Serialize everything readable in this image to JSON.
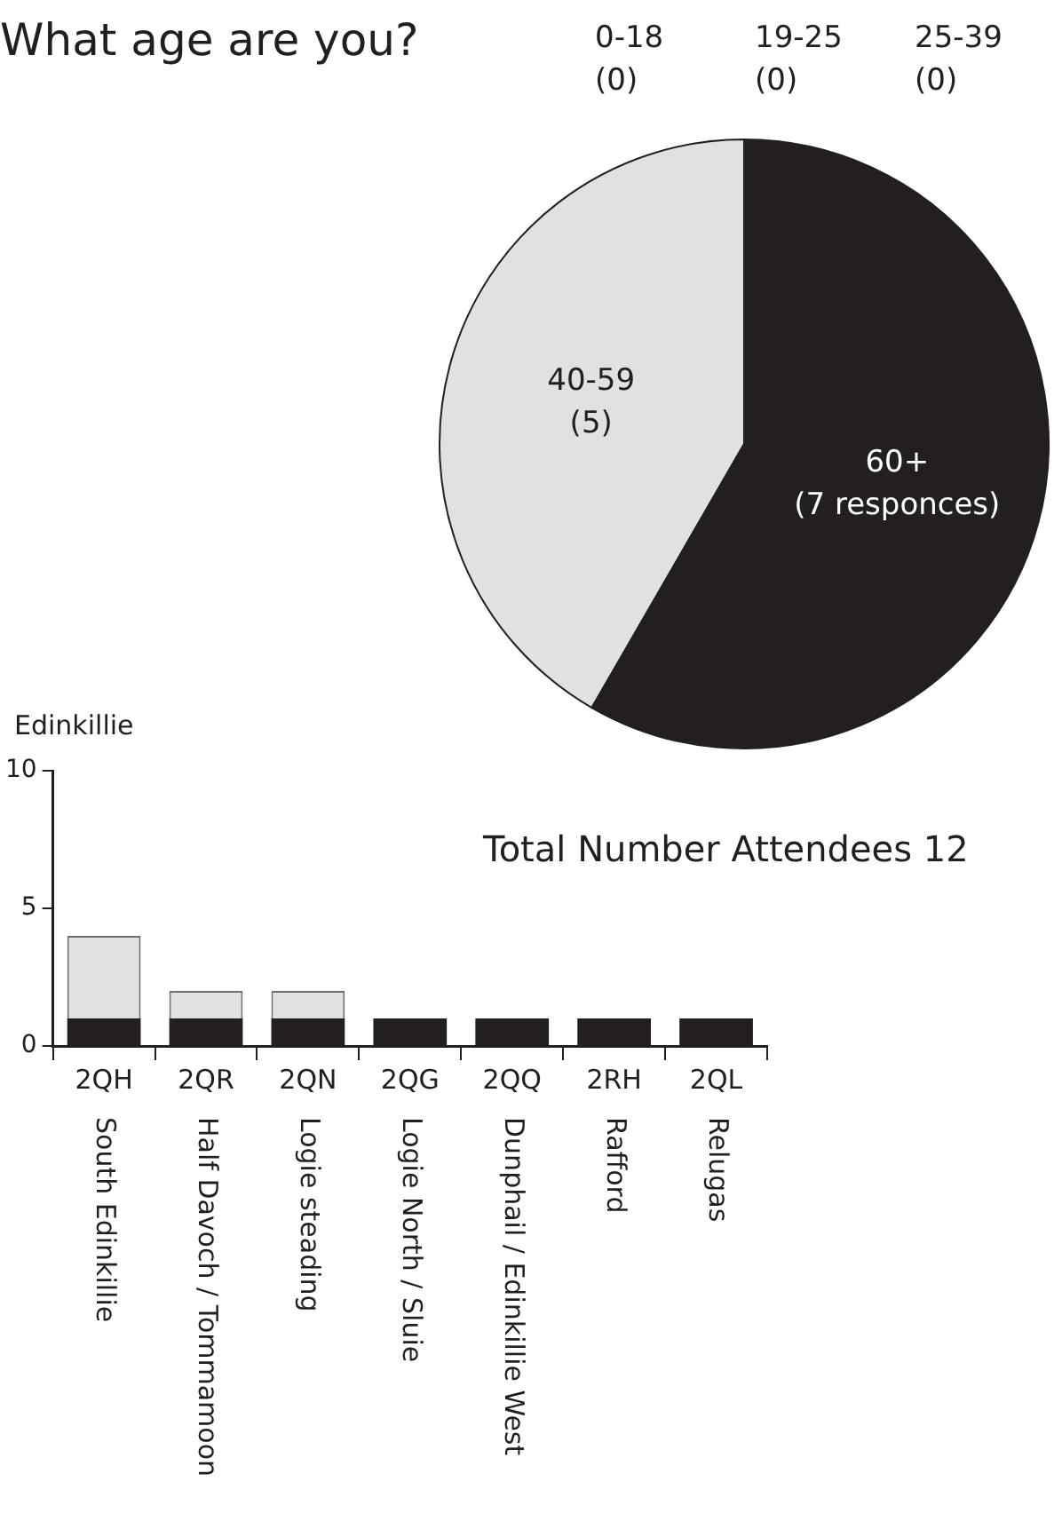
{
  "chart_data": [
    {
      "type": "pie",
      "title": "What age are you?",
      "categories": [
        "0-18",
        "19-25",
        "25-39",
        "40-59",
        "60+"
      ],
      "values": [
        0,
        0,
        0,
        5,
        7
      ],
      "colors": [
        "#e0e1e3",
        "#e0e1e3",
        "#e0e1e3",
        "#e0e1e3",
        "#231f20"
      ],
      "value_labels": [
        "(0)",
        "(0)",
        "(0)",
        "(5)",
        "(7 responces)"
      ],
      "annotations": [
        "Total Number Attendees 12"
      ]
    },
    {
      "type": "bar",
      "title": "Edinkillie",
      "stacked": true,
      "categories": [
        "2QH",
        "2QR",
        "2QN",
        "2QG",
        "2QQ",
        "2RH",
        "2QL"
      ],
      "series": [
        {
          "color": "#231f20",
          "values": [
            1,
            1,
            1,
            1,
            1,
            1,
            1
          ]
        },
        {
          "color": "#e0e1e3",
          "values": [
            3,
            1,
            1,
            0,
            0,
            0,
            0
          ]
        }
      ],
      "ylim": [
        0,
        10
      ],
      "yticks": [
        0,
        5,
        10
      ],
      "grid": false,
      "annotations": [
        "South Edinkillie",
        "Half Davoch / Tommamoon",
        "Logie steading",
        "Logie North / Sluie",
        "Dunphail / Edinkillie West",
        "Rafford",
        "Relugas"
      ]
    }
  ]
}
